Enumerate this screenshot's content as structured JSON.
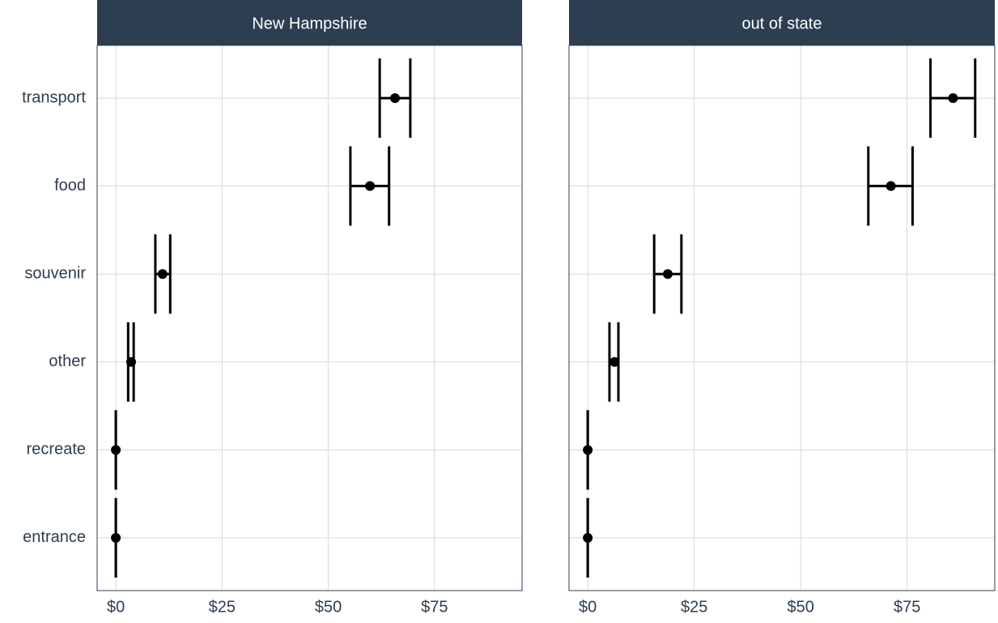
{
  "chart_data": {
    "type": "errorbar",
    "categories": [
      "transport",
      "food",
      "souvenir",
      "other",
      "recreate",
      "entrance"
    ],
    "xlim": [
      -4.4,
      95.6
    ],
    "xticks": [
      {
        "value": 0,
        "label": "$0"
      },
      {
        "value": 25,
        "label": "$25"
      },
      {
        "value": 50,
        "label": "$50"
      },
      {
        "value": 75,
        "label": "$75"
      }
    ],
    "grid": true,
    "color": "#000000",
    "facets": [
      {
        "title": "New Hampshire",
        "values": [
          65.7,
          59.8,
          11.0,
          3.6,
          0,
          0
        ],
        "low": [
          62.1,
          55.2,
          9.3,
          2.9,
          0,
          0
        ],
        "high": [
          69.3,
          64.3,
          12.8,
          4.2,
          0,
          0
        ]
      },
      {
        "title": "out of state",
        "values": [
          85.8,
          71.2,
          18.8,
          6.3,
          0,
          0
        ],
        "low": [
          80.5,
          65.9,
          15.6,
          5.1,
          0,
          0
        ],
        "high": [
          91.0,
          76.3,
          22.0,
          7.2,
          0,
          0
        ]
      }
    ]
  }
}
